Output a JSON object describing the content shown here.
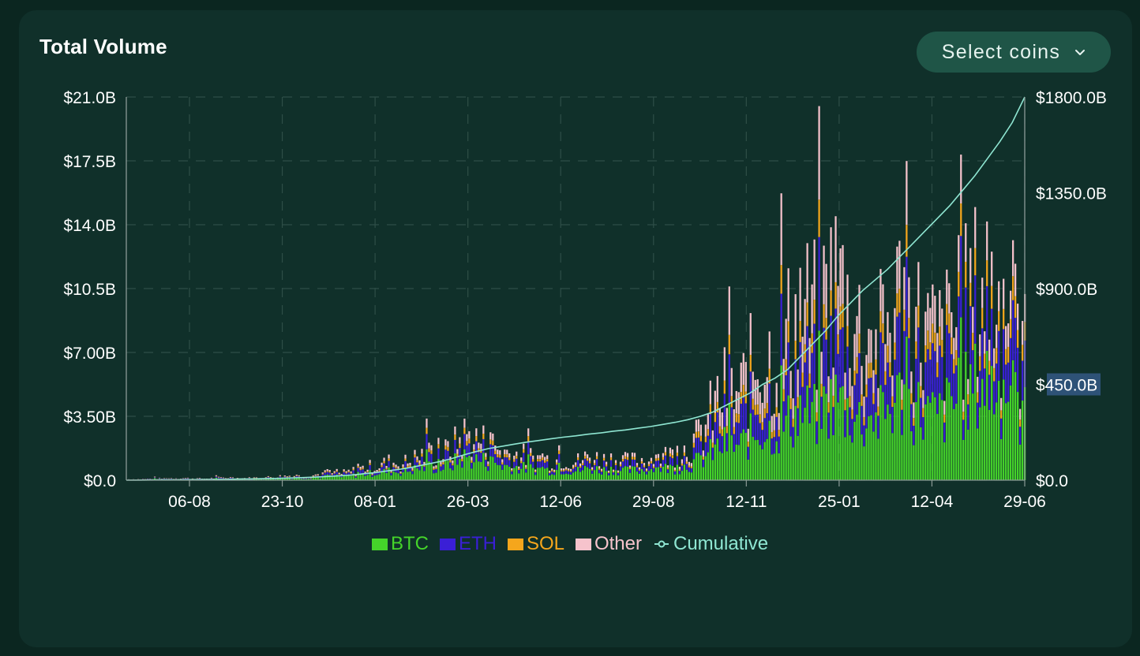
{
  "header": {
    "title": "Total Volume",
    "select_label": "Select coins"
  },
  "colors": {
    "btc": "#45d42a",
    "eth": "#3a1fd6",
    "sol": "#f5a61c",
    "other": "#f6c3cc",
    "cumulative": "#8fe6d2",
    "grid": "#2e4e47",
    "axis": "#8a9a96",
    "highlight": "#2e5277"
  },
  "chart_data": {
    "type": "bar",
    "title": "Total Volume",
    "stacked": true,
    "x_tick_labels": [
      "06-08",
      "23-10",
      "08-01",
      "26-03",
      "12-06",
      "29-08",
      "12-11",
      "25-01",
      "12-04",
      "29-06"
    ],
    "y_left": {
      "tick_labels": [
        "$0.0",
        "$3.50B",
        "$7.00B",
        "$10.5B",
        "$14.0B",
        "$17.5B",
        "$21.0B"
      ],
      "range": [
        0,
        21
      ]
    },
    "y_right": {
      "tick_labels": [
        "$0.0",
        "$450.0B",
        "$900.0B",
        "$1350.0B",
        "$1800.0B"
      ],
      "range": [
        0,
        1800
      ],
      "highlighted_label": "$450.0B"
    },
    "legend": [
      "BTC",
      "ETH",
      "SOL",
      "Other",
      "Cumulative"
    ],
    "legend_position": "bottom",
    "grid": true,
    "series_names": [
      "BTC",
      "ETH",
      "SOL",
      "Other"
    ],
    "daily_totals_billions": [
      0.05,
      0.06,
      0.08,
      0.1,
      0.12,
      0.1,
      0.08,
      0.12,
      0.15,
      0.1,
      0.12,
      0.15,
      0.2,
      0.25,
      0.2,
      0.3,
      0.4,
      0.35,
      0.5,
      0.7,
      0.8,
      1.0,
      0.9,
      1.2,
      1.5,
      1.3,
      1.8,
      2.5,
      2.2,
      2.0,
      1.6,
      1.4,
      1.3,
      1.2,
      1.1,
      1.2,
      1.0,
      1.3,
      1.1,
      1.2,
      1.0,
      1.1,
      1.2,
      1.3,
      1.5,
      1.8,
      2.5,
      4.0,
      5.0,
      4.5,
      6.0,
      7.0,
      6.5,
      8.0,
      9.5,
      8.5,
      10.0,
      11.0,
      9.0,
      8.0,
      7.0,
      8.5,
      10.0,
      9.0,
      8.0,
      7.5,
      8.0,
      9.0,
      10.0,
      11.0,
      9.5,
      8.5,
      7.0
    ],
    "btc_share": [
      0.55,
      0.55,
      0.55,
      0.55,
      0.5,
      0.5,
      0.5,
      0.5,
      0.5,
      0.5,
      0.5,
      0.5,
      0.5,
      0.5,
      0.5,
      0.5,
      0.5,
      0.5,
      0.5,
      0.5,
      0.5,
      0.5,
      0.5,
      0.5,
      0.5,
      0.5,
      0.5,
      0.5,
      0.5,
      0.5,
      0.5,
      0.5,
      0.5,
      0.5,
      0.5,
      0.5,
      0.5,
      0.5,
      0.5,
      0.5,
      0.5,
      0.5,
      0.5,
      0.5,
      0.45,
      0.45,
      0.45,
      0.4,
      0.4,
      0.4,
      0.4,
      0.4,
      0.4,
      0.4,
      0.4,
      0.4,
      0.4,
      0.4,
      0.4,
      0.4,
      0.45,
      0.45,
      0.45,
      0.45,
      0.45,
      0.45,
      0.5,
      0.5,
      0.5,
      0.5,
      0.5,
      0.5,
      0.5
    ],
    "eth_share": 0.25,
    "sol_share": 0.1,
    "cumulative_billions": [
      0,
      0.5,
      1,
      1.5,
      2,
      2.5,
      3,
      3.5,
      4,
      5,
      6,
      7,
      8,
      10,
      12,
      14,
      17,
      20,
      24,
      30,
      36,
      44,
      52,
      62,
      74,
      86,
      100,
      118,
      134,
      148,
      158,
      168,
      178,
      186,
      194,
      202,
      208,
      216,
      222,
      230,
      236,
      244,
      252,
      262,
      272,
      284,
      300,
      320,
      350,
      380,
      410,
      450,
      480,
      520,
      580,
      640,
      700,
      770,
      830,
      890,
      940,
      990,
      1050,
      1110,
      1170,
      1230,
      1290,
      1360,
      1430,
      1510,
      1590,
      1680,
      1800
    ]
  }
}
